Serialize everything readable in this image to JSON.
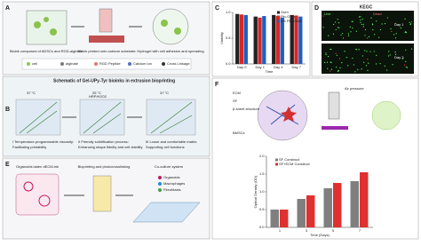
{
  "panels": {
    "a": {
      "letter": "A",
      "steps": [
        "Bioink composed of ADSCs and RGD-alginate",
        "Bioink printed onto calcium substrate",
        "Hydrogel with cell adhesion and spreading"
      ],
      "legend": [
        "cell",
        "alginate",
        "RGD Peptide",
        "Calcium ion",
        "Cross Linkage"
      ]
    },
    "b": {
      "letter": "B",
      "title": "Schematic of Gel-UPy-Tyr bioinks in extrusion bioprinting",
      "temps": [
        "37 °C",
        "25 °C",
        "37 °C"
      ],
      "reagent": "HRP/H2O2",
      "stages": [
        [
          "I Temperature-programmable viscosity:",
          "Facilitating printability"
        ],
        [
          "II Friendly solidification process:",
          "Enhancing shape fidelity and cell viability"
        ],
        [
          "III Loose and comfortable matrix:",
          "Supporting cell functions"
        ]
      ]
    },
    "c": {
      "letter": "C",
      "chart": {
        "type": "bar",
        "ylabel": "Viability",
        "xlabel": "Time",
        "categories": [
          "Day 0",
          "Day 1",
          "Day 4",
          "Day 7"
        ],
        "ylim": [
          0,
          1.0
        ],
        "yticks": [
          {
            "value": 0,
            "label": "0.0"
          },
          {
            "value": 0.5,
            "label": "0.5"
          },
          {
            "value": 1,
            "label": "1.0"
          }
        ],
        "series": [
          {
            "name": "Gum",
            "color": "#222222",
            "values": [
              0.97,
              0.92,
              0.95,
              0.95
            ]
          },
          {
            "name": "Pin-Gum",
            "color": "#d62728",
            "values": [
              0.96,
              0.9,
              0.93,
              0.94
            ]
          },
          {
            "name": "6% PEGDMA",
            "color": "#1f5fbf",
            "values": [
              0.95,
              0.93,
              0.9,
              0.92
            ]
          }
        ]
      }
    },
    "d": {
      "letter": "D",
      "title": "KEGC",
      "live": "Live",
      "dead": "Dead",
      "days": [
        "Day 1",
        "Day 3"
      ]
    },
    "e": {
      "letter": "E",
      "steps": [
        "Organoids laden dECM-ink",
        "Bioprinting and photocrosslinking",
        "Co-culture system"
      ],
      "legend": [
        "Organoids",
        "Macrophages",
        "Fibroblasts"
      ]
    },
    "f": {
      "letter": "F",
      "labels": [
        "ECM",
        "SF",
        "β-sheet structure",
        "BMSCs"
      ],
      "pressure": "Air pressure",
      "chart": {
        "type": "bar",
        "ylabel": "Optical Density (OD)",
        "xlabel": "Time (Days)",
        "categories": [
          "1",
          "3",
          "5",
          "7"
        ],
        "ylim": [
          0,
          2.0
        ],
        "yticks": [
          {
            "value": 0,
            "label": "0.0"
          },
          {
            "value": 0.5,
            "label": "0.5"
          },
          {
            "value": 1,
            "label": "1.0"
          },
          {
            "value": 1.5,
            "label": "1.5"
          },
          {
            "value": 2,
            "label": "2.0"
          }
        ],
        "series": [
          {
            "name": "SF Construct",
            "color": "#7f7f7f",
            "values": [
              0.5,
              0.8,
              1.1,
              1.3
            ]
          },
          {
            "name": "SF+ECM Construct",
            "color": "#e03030",
            "values": [
              0.5,
              0.9,
              1.25,
              1.55
            ]
          }
        ]
      }
    }
  }
}
